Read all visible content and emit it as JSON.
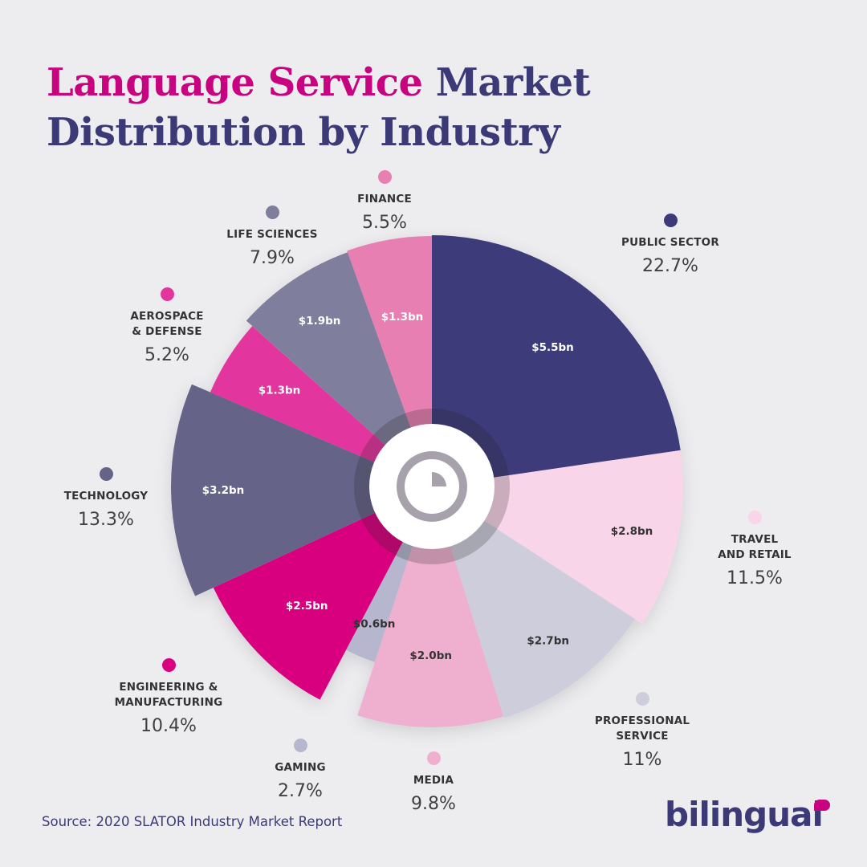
{
  "title": {
    "part1": "Language Service",
    "part2": "Market",
    "part3": "Distribution by Industry"
  },
  "source": "Source: 2020 SLATOR Industry Market Report",
  "brand": "bilingual",
  "colors": {
    "title_magenta": "#c8037f",
    "title_navy": "#3b3a77",
    "background": "#ededf0"
  },
  "center_icon": "pie-chart-icon",
  "chart_data": {
    "type": "pie",
    "title": "Language Service Market Distribution by Industry",
    "segments": [
      {
        "name": "PUBLIC SECTOR",
        "percent": 22.7,
        "percent_label": "22.7%",
        "value_label": "$5.5bn",
        "value_bn": 5.5,
        "color": "#3c3a7a"
      },
      {
        "name": "TRAVEL AND RETAIL",
        "percent": 11.5,
        "percent_label": "11.5%",
        "value_label": "$2.8bn",
        "value_bn": 2.8,
        "color": "#f9d5ea"
      },
      {
        "name": "PROFESSIONAL SERVICE",
        "percent": 11,
        "percent_label": "11%",
        "value_label": "$2.7bn",
        "value_bn": 2.7,
        "color": "#cdcddb"
      },
      {
        "name": "MEDIA",
        "percent": 9.8,
        "percent_label": "9.8%",
        "value_label": "$2.0bn",
        "value_bn": 2.0,
        "color": "#efb0d0"
      },
      {
        "name": "GAMING",
        "percent": 2.7,
        "percent_label": "2.7%",
        "value_label": "$0.6bn",
        "value_bn": 0.6,
        "color": "#b6b6cf"
      },
      {
        "name": "ENGINEERING & MANUFACTURING",
        "percent": 10.4,
        "percent_label": "10.4%",
        "value_label": "$2.5bn",
        "value_bn": 2.5,
        "color": "#d9037f"
      },
      {
        "name": "TECHNOLOGY",
        "percent": 13.3,
        "percent_label": "13.3%",
        "value_label": "$3.2bn",
        "value_bn": 3.2,
        "color": "#656488"
      },
      {
        "name": "AEROSPACE & DEFENSE",
        "percent": 5.2,
        "percent_label": "5.2%",
        "value_label": "$1.3bn",
        "value_bn": 1.3,
        "color": "#e2369d"
      },
      {
        "name": "LIFE SCIENCES",
        "percent": 7.9,
        "percent_label": "7.9%",
        "value_label": "$1.9bn",
        "value_bn": 1.9,
        "color": "#7f7e9c"
      },
      {
        "name": "FINANCE",
        "percent": 5.5,
        "percent_label": "5.5%",
        "value_label": "$1.3bn",
        "value_bn": 1.3,
        "color": "#e77fb2"
      }
    ]
  }
}
